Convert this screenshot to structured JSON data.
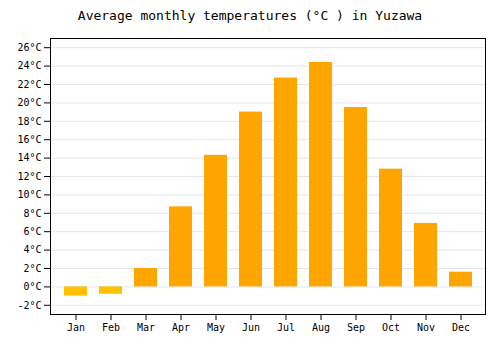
{
  "chart_data": {
    "type": "bar",
    "title": "Average monthly temperatures (°C ) in Yuzawa",
    "categories": [
      "Jan",
      "Feb",
      "Mar",
      "Apr",
      "May",
      "Jun",
      "Jul",
      "Aug",
      "Sep",
      "Oct",
      "Nov",
      "Dec"
    ],
    "values": [
      -1.0,
      -0.8,
      2.0,
      8.7,
      14.3,
      19.0,
      22.7,
      24.4,
      19.5,
      12.8,
      6.9,
      1.6
    ],
    "colors": [
      "#FFC000",
      "#FFC000",
      "#FFA500",
      "#FFA500",
      "#FFA500",
      "#FFA500",
      "#FFA500",
      "#FFA500",
      "#FFA500",
      "#FFA500",
      "#FFA500",
      "#FFA500"
    ],
    "ylim": [
      -3,
      27
    ],
    "yticks": [
      {
        "value": -2,
        "label": "-2°C"
      },
      {
        "value": 0,
        "label": "0°C"
      },
      {
        "value": 2,
        "label": "2°C"
      },
      {
        "value": 4,
        "label": "4°C"
      },
      {
        "value": 6,
        "label": "6°C"
      },
      {
        "value": 8,
        "label": "8°C"
      },
      {
        "value": 10,
        "label": "10°C"
      },
      {
        "value": 12,
        "label": "12°C"
      },
      {
        "value": 14,
        "label": "14°C"
      },
      {
        "value": 16,
        "label": "16°C"
      },
      {
        "value": 18,
        "label": "18°C"
      },
      {
        "value": 20,
        "label": "20°C"
      },
      {
        "value": 22,
        "label": "22°C"
      },
      {
        "value": 24,
        "label": "24°C"
      },
      {
        "value": 26,
        "label": "26°C"
      }
    ],
    "grid": true
  }
}
